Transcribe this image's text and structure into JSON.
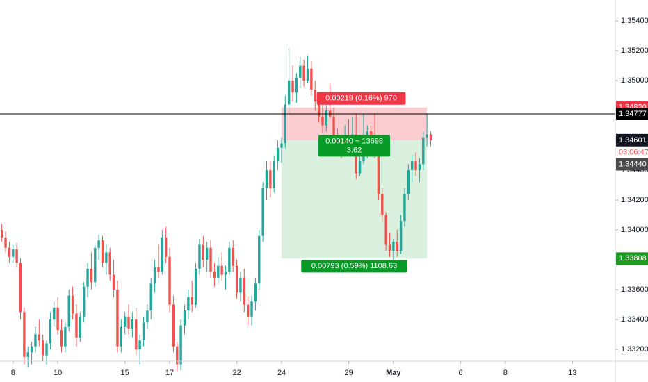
{
  "chart_data": {
    "type": "candlestick",
    "up_color": "#26a69a",
    "down_color": "#ef5350",
    "xlim": [
      -3.5,
      161.5
    ],
    "ylim": [
      1.33121,
      1.3554
    ],
    "xticks": [
      {
        "value": 0,
        "label": "8"
      },
      {
        "value": 12,
        "label": "10"
      },
      {
        "value": 30,
        "label": "15"
      },
      {
        "value": 42,
        "label": "17"
      },
      {
        "value": 60,
        "label": "22"
      },
      {
        "value": 72,
        "label": "24"
      },
      {
        "value": 90,
        "label": "29"
      },
      {
        "value": 102,
        "label": "May"
      },
      {
        "value": 120,
        "label": "6"
      },
      {
        "value": 132,
        "label": "8"
      },
      {
        "value": 150,
        "label": "13"
      }
    ],
    "yticks": [
      {
        "value": 1.354,
        "label": "1.35400"
      },
      {
        "value": 1.352,
        "label": "1.35200"
      },
      {
        "value": 1.35,
        "label": "1.35000"
      },
      {
        "value": 1.348,
        "label": "1.34800"
      },
      {
        "value": 1.346,
        "label": "1.34600"
      },
      {
        "value": 1.344,
        "label": "1.34400"
      },
      {
        "value": 1.342,
        "label": "1.34200"
      },
      {
        "value": 1.34,
        "label": "1.34000"
      },
      {
        "value": 1.338,
        "label": "1.33800"
      },
      {
        "value": 1.336,
        "label": "1.33600"
      },
      {
        "value": 1.334,
        "label": "1.33400"
      },
      {
        "value": 1.332,
        "label": "1.33200"
      }
    ],
    "candles": [
      [
        -3,
        1.34,
        1.3404,
        1.3392,
        1.3395
      ],
      [
        -2,
        1.3395,
        1.3399,
        1.3385,
        1.3388
      ],
      [
        -1,
        1.3388,
        1.3392,
        1.3378,
        1.3382
      ],
      [
        0,
        1.3382,
        1.339,
        1.3378,
        1.3387
      ],
      [
        1,
        1.3387,
        1.3391,
        1.3375,
        1.3378
      ],
      [
        2,
        1.3378,
        1.3381,
        1.334,
        1.3345
      ],
      [
        3,
        1.3345,
        1.3348,
        1.331,
        1.3315
      ],
      [
        4,
        1.3315,
        1.3322,
        1.3308,
        1.3318
      ],
      [
        5,
        1.3318,
        1.3325,
        1.331,
        1.3322
      ],
      [
        6,
        1.3322,
        1.3335,
        1.3318,
        1.333
      ],
      [
        7,
        1.333,
        1.334,
        1.3322,
        1.3326
      ],
      [
        8,
        1.3326,
        1.333,
        1.3312,
        1.3316
      ],
      [
        9,
        1.3316,
        1.3326,
        1.331,
        1.3324
      ],
      [
        10,
        1.3324,
        1.3345,
        1.332,
        1.334
      ],
      [
        11,
        1.334,
        1.3352,
        1.3335,
        1.3348
      ],
      [
        12,
        1.3348,
        1.3355,
        1.333,
        1.3333
      ],
      [
        13,
        1.3333,
        1.334,
        1.3318,
        1.3322
      ],
      [
        14,
        1.3322,
        1.3338,
        1.3318,
        1.3335
      ],
      [
        15,
        1.3335,
        1.336,
        1.3332,
        1.3356
      ],
      [
        16,
        1.3356,
        1.3362,
        1.334,
        1.3344
      ],
      [
        17,
        1.3344,
        1.335,
        1.3322,
        1.3328
      ],
      [
        18,
        1.3328,
        1.3345,
        1.3325,
        1.3342
      ],
      [
        19,
        1.3342,
        1.3365,
        1.3338,
        1.3362
      ],
      [
        20,
        1.3362,
        1.3378,
        1.3355,
        1.3374
      ],
      [
        21,
        1.3374,
        1.3385,
        1.336,
        1.3365
      ],
      [
        22,
        1.3365,
        1.339,
        1.3362,
        1.3388
      ],
      [
        23,
        1.3388,
        1.3397,
        1.338,
        1.3393
      ],
      [
        24,
        1.3393,
        1.3396,
        1.3375,
        1.3378
      ],
      [
        25,
        1.3378,
        1.339,
        1.337,
        1.3385
      ],
      [
        26,
        1.3385,
        1.3388,
        1.3366,
        1.337
      ],
      [
        27,
        1.337,
        1.338,
        1.3355,
        1.336
      ],
      [
        28,
        1.336,
        1.3366,
        1.3318,
        1.3322
      ],
      [
        29,
        1.3322,
        1.334,
        1.3318,
        1.3335
      ],
      [
        30,
        1.3335,
        1.3345,
        1.333,
        1.3342
      ],
      [
        31,
        1.3342,
        1.335,
        1.333,
        1.3334
      ],
      [
        32,
        1.3334,
        1.3345,
        1.3328,
        1.334
      ],
      [
        33,
        1.334,
        1.3348,
        1.3316,
        1.332
      ],
      [
        34,
        1.332,
        1.333,
        1.331,
        1.3326
      ],
      [
        35,
        1.3326,
        1.3342,
        1.3322,
        1.3338
      ],
      [
        36,
        1.3338,
        1.335,
        1.3334,
        1.3346
      ],
      [
        37,
        1.3346,
        1.3368,
        1.334,
        1.3364
      ],
      [
        38,
        1.3364,
        1.338,
        1.3358,
        1.3375
      ],
      [
        39,
        1.3375,
        1.339,
        1.3368,
        1.3372
      ],
      [
        40,
        1.3372,
        1.34,
        1.337,
        1.3395
      ],
      [
        41,
        1.3395,
        1.3402,
        1.3378,
        1.3382
      ],
      [
        42,
        1.3382,
        1.3388,
        1.3345,
        1.335
      ],
      [
        43,
        1.335,
        1.3356,
        1.3318,
        1.3322
      ],
      [
        44,
        1.3322,
        1.3325,
        1.3305,
        1.331
      ],
      [
        45,
        1.331,
        1.334,
        1.3306,
        1.3336
      ],
      [
        46,
        1.3336,
        1.335,
        1.333,
        1.3346
      ],
      [
        47,
        1.3346,
        1.336,
        1.334,
        1.3355
      ],
      [
        48,
        1.3355,
        1.3366,
        1.3345,
        1.335
      ],
      [
        49,
        1.335,
        1.3378,
        1.3348,
        1.3374
      ],
      [
        50,
        1.3374,
        1.3394,
        1.337,
        1.339
      ],
      [
        51,
        1.339,
        1.3396,
        1.3375,
        1.338
      ],
      [
        52,
        1.338,
        1.3392,
        1.3372,
        1.3388
      ],
      [
        53,
        1.3388,
        1.3393,
        1.3368,
        1.3372
      ],
      [
        54,
        1.3372,
        1.3378,
        1.3362,
        1.3368
      ],
      [
        55,
        1.3368,
        1.3382,
        1.3364,
        1.3376
      ],
      [
        56,
        1.3376,
        1.3385,
        1.3366,
        1.337
      ],
      [
        57,
        1.337,
        1.3376,
        1.336,
        1.3372
      ],
      [
        58,
        1.3372,
        1.3392,
        1.337,
        1.3388
      ],
      [
        59,
        1.3388,
        1.3393,
        1.3372,
        1.3376
      ],
      [
        60,
        1.3376,
        1.338,
        1.3354,
        1.3358
      ],
      [
        61,
        1.3358,
        1.3372,
        1.3352,
        1.3368
      ],
      [
        62,
        1.3368,
        1.3374,
        1.3345,
        1.335
      ],
      [
        63,
        1.335,
        1.3356,
        1.3336,
        1.3342
      ],
      [
        64,
        1.3342,
        1.3356,
        1.3336,
        1.3352
      ],
      [
        65,
        1.3352,
        1.3368,
        1.3346,
        1.3364
      ],
      [
        66,
        1.3364,
        1.34,
        1.336,
        1.3396
      ],
      [
        67,
        1.3396,
        1.3432,
        1.3392,
        1.3428
      ],
      [
        68,
        1.3428,
        1.3446,
        1.342,
        1.344
      ],
      [
        69,
        1.344,
        1.3446,
        1.3422,
        1.3428
      ],
      [
        70,
        1.3428,
        1.345,
        1.3425,
        1.3446
      ],
      [
        71,
        1.3446,
        1.346,
        1.344,
        1.3455
      ],
      [
        72,
        1.3455,
        1.3462,
        1.3445,
        1.3458
      ],
      [
        73,
        1.3458,
        1.349,
        1.3455,
        1.3484
      ],
      [
        74,
        1.3484,
        1.3522,
        1.3478,
        1.35
      ],
      [
        75,
        1.35,
        1.351,
        1.3486,
        1.3492
      ],
      [
        76,
        1.3492,
        1.3505,
        1.3485,
        1.3502
      ],
      [
        77,
        1.3502,
        1.3516,
        1.3495,
        1.351
      ],
      [
        78,
        1.351,
        1.3514,
        1.3496,
        1.35
      ],
      [
        79,
        1.35,
        1.3517,
        1.3498,
        1.3508
      ],
      [
        80,
        1.3508,
        1.3513,
        1.349,
        1.3494
      ],
      [
        81,
        1.3494,
        1.35,
        1.348,
        1.3486
      ],
      [
        82,
        1.3486,
        1.349,
        1.3472,
        1.3476
      ],
      [
        83,
        1.3476,
        1.3484,
        1.3465,
        1.347
      ],
      [
        84,
        1.347,
        1.3485,
        1.3466,
        1.348
      ],
      [
        85,
        1.348,
        1.3498,
        1.3475,
        1.3476
      ],
      [
        86,
        1.3476,
        1.3482,
        1.3455,
        1.346
      ],
      [
        87,
        1.346,
        1.3468,
        1.3452,
        1.3458
      ],
      [
        88,
        1.3458,
        1.3462,
        1.3448,
        1.3455
      ],
      [
        89,
        1.3455,
        1.347,
        1.3452,
        1.3462
      ],
      [
        90,
        1.3462,
        1.3474,
        1.345,
        1.3454
      ],
      [
        91,
        1.3454,
        1.3476,
        1.345,
        1.3464
      ],
      [
        92,
        1.3464,
        1.3478,
        1.3434,
        1.3438
      ],
      [
        93,
        1.3438,
        1.345,
        1.3436,
        1.3446
      ],
      [
        94,
        1.3446,
        1.3478,
        1.3444,
        1.3462
      ],
      [
        95,
        1.3462,
        1.347,
        1.3448,
        1.3466
      ],
      [
        96,
        1.3466,
        1.347,
        1.345,
        1.3462
      ],
      [
        97,
        1.3462,
        1.3478,
        1.3448,
        1.3454
      ],
      [
        98,
        1.3454,
        1.3458,
        1.342,
        1.3424
      ],
      [
        99,
        1.3424,
        1.3428,
        1.3405,
        1.341
      ],
      [
        100,
        1.341,
        1.3412,
        1.3386,
        1.339
      ],
      [
        101,
        1.339,
        1.3398,
        1.3382,
        1.3386
      ],
      [
        102,
        1.3386,
        1.3394,
        1.338,
        1.3392
      ],
      [
        103,
        1.3392,
        1.34,
        1.3382,
        1.3386
      ],
      [
        104,
        1.3386,
        1.341,
        1.3384,
        1.3406
      ],
      [
        105,
        1.3406,
        1.3428,
        1.3402,
        1.3424
      ],
      [
        106,
        1.3424,
        1.3444,
        1.342,
        1.344
      ],
      [
        107,
        1.344,
        1.345,
        1.3432,
        1.3446
      ],
      [
        108,
        1.3446,
        1.3452,
        1.3436,
        1.344
      ],
      [
        109,
        1.344,
        1.3448,
        1.3432,
        1.3444
      ],
      [
        110,
        1.3444,
        1.3466,
        1.344,
        1.3462
      ],
      [
        111,
        1.3462,
        1.3478,
        1.3456,
        1.3464
      ],
      [
        112,
        1.3464,
        1.3466,
        1.3456,
        1.34601
      ]
    ],
    "position": {
      "x": [
        72,
        111
      ],
      "stop": 1.3482,
      "entry": 1.34601,
      "target": 1.33808,
      "stop_label": "0.00219 (0.16%) 970",
      "mid_label": [
        "0.00140 ~ 13698",
        "3.62"
      ],
      "target_label": "0.00793 (0.59%) 1108.63"
    },
    "hline": 1.34777,
    "price_markers": [
      {
        "value": 1.3482,
        "label": "1.34820",
        "color": "#f23645"
      },
      {
        "value": 1.34777,
        "label": "1.34777",
        "color": "#000000"
      },
      {
        "value": 1.34601,
        "label": "1.34601",
        "color": "#131722"
      },
      {
        "value": 1.3444,
        "label": "1.34440",
        "color": "#4a4a4a"
      },
      {
        "value": 1.33808,
        "label": "1.33808",
        "color": "#1e9a1e"
      }
    ],
    "countdown": "03:06:47",
    "countdown_color": "#ef5350"
  }
}
